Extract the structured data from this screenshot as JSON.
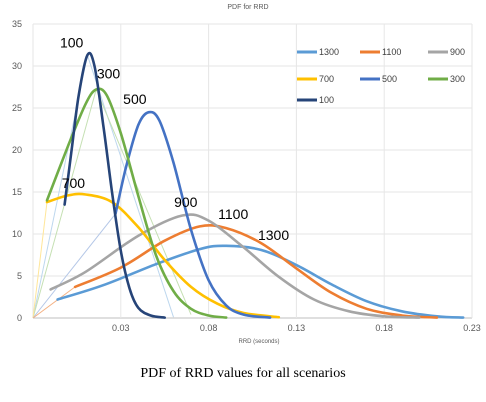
{
  "caption": "PDF of RRD values for all scenarios",
  "chart_data": {
    "type": "line",
    "title": "PDF for RRD",
    "xlabel": "RRD (seconds)",
    "ylabel": "",
    "xlim": [
      -0.02,
      0.23
    ],
    "ylim": [
      0,
      35
    ],
    "xticks": [
      0.03,
      0.08,
      0.13,
      0.18,
      0.23
    ],
    "xtick_labels": [
      "0.03",
      "0.08",
      "0.13",
      "0.18",
      "0.23"
    ],
    "yticks": [
      0,
      5,
      10,
      15,
      20,
      25,
      30,
      35
    ],
    "grid": true,
    "legend_position": "top-right",
    "series": [
      {
        "name": "1300",
        "color": "#5b9bd5",
        "label": "1300",
        "label_at": [
          0.117,
          9.3
        ],
        "points": [
          [
            -0.006,
            2.2
          ],
          [
            0.02,
            3.9
          ],
          [
            0.05,
            6.4
          ],
          [
            0.075,
            8.2
          ],
          [
            0.09,
            8.6
          ],
          [
            0.11,
            8.1
          ],
          [
            0.13,
            6.3
          ],
          [
            0.15,
            4.0
          ],
          [
            0.17,
            2.0
          ],
          [
            0.19,
            0.8
          ],
          [
            0.21,
            0.2
          ],
          [
            0.225,
            0.05
          ]
        ]
      },
      {
        "name": "1100",
        "color": "#ed7d31",
        "label": "1100",
        "label_at": [
          0.094,
          11.8
        ],
        "points": [
          [
            0.004,
            3.7
          ],
          [
            0.03,
            6.0
          ],
          [
            0.055,
            9.2
          ],
          [
            0.075,
            10.9
          ],
          [
            0.09,
            10.7
          ],
          [
            0.11,
            8.9
          ],
          [
            0.13,
            5.9
          ],
          [
            0.15,
            3.0
          ],
          [
            0.17,
            1.1
          ],
          [
            0.19,
            0.3
          ],
          [
            0.21,
            0.05
          ]
        ]
      },
      {
        "name": "900",
        "color": "#a5a5a5",
        "label": "900",
        "label_at": [
          0.067,
          13.2
        ],
        "points": [
          [
            -0.01,
            3.4
          ],
          [
            0.01,
            5.5
          ],
          [
            0.04,
            9.8
          ],
          [
            0.065,
            12.2
          ],
          [
            0.08,
            11.6
          ],
          [
            0.1,
            8.4
          ],
          [
            0.12,
            4.9
          ],
          [
            0.14,
            2.2
          ],
          [
            0.16,
            0.8
          ],
          [
            0.18,
            0.2
          ],
          [
            0.2,
            0.05
          ]
        ]
      },
      {
        "name": "700",
        "color": "#ffc000",
        "label": "700",
        "label_at": [
          0.003,
          15.5
        ],
        "points": [
          [
            -0.012,
            13.8
          ],
          [
            0.0,
            14.6
          ],
          [
            0.01,
            14.7
          ],
          [
            0.025,
            13.8
          ],
          [
            0.04,
            10.8
          ],
          [
            0.055,
            6.9
          ],
          [
            0.07,
            3.7
          ],
          [
            0.085,
            1.7
          ],
          [
            0.1,
            0.6
          ],
          [
            0.12,
            0.1
          ]
        ]
      },
      {
        "name": "500",
        "color": "#4472c4",
        "label": "500",
        "label_at": [
          0.038,
          25.5
        ],
        "points": [
          [
            0.027,
            12.4
          ],
          [
            0.033,
            18.0
          ],
          [
            0.04,
            23.0
          ],
          [
            0.046,
            24.5
          ],
          [
            0.052,
            23.5
          ],
          [
            0.06,
            18.5
          ],
          [
            0.07,
            10.5
          ],
          [
            0.08,
            4.5
          ],
          [
            0.09,
            1.5
          ],
          [
            0.1,
            0.4
          ],
          [
            0.115,
            0.05
          ]
        ]
      },
      {
        "name": "300",
        "color": "#70ad47",
        "label": "300",
        "label_at": [
          0.023,
          28.5
        ],
        "points": [
          [
            -0.012,
            14.0
          ],
          [
            0.0,
            20.5
          ],
          [
            0.01,
            25.5
          ],
          [
            0.016,
            27.2
          ],
          [
            0.022,
            26.5
          ],
          [
            0.03,
            22.0
          ],
          [
            0.04,
            14.5
          ],
          [
            0.05,
            7.5
          ],
          [
            0.06,
            3.2
          ],
          [
            0.07,
            1.1
          ],
          [
            0.08,
            0.3
          ],
          [
            0.09,
            0.05
          ]
        ]
      },
      {
        "name": "100",
        "color": "#264478",
        "label": "100",
        "label_at": [
          0.002,
          32.2
        ],
        "points": [
          [
            -0.002,
            13.5
          ],
          [
            0.002,
            20.0
          ],
          [
            0.006,
            26.5
          ],
          [
            0.011,
            31.3
          ],
          [
            0.015,
            30.0
          ],
          [
            0.02,
            23.0
          ],
          [
            0.025,
            15.0
          ],
          [
            0.03,
            8.0
          ],
          [
            0.035,
            3.5
          ],
          [
            0.04,
            1.2
          ],
          [
            0.047,
            0.3
          ],
          [
            0.055,
            0.05
          ]
        ]
      }
    ],
    "faint_lines": [
      {
        "color": "#bdd7ee",
        "points": [
          [
            -0.02,
            0.0
          ],
          [
            0.011,
            31.3
          ],
          [
            0.06,
            0.1
          ]
        ]
      },
      {
        "color": "#c5e0b3",
        "points": [
          [
            -0.02,
            0.0
          ],
          [
            0.016,
            27.2
          ],
          [
            0.07,
            0.4
          ]
        ]
      },
      {
        "color": "#ffe699",
        "points": [
          [
            -0.02,
            0.0
          ],
          [
            -0.012,
            13.8
          ]
        ]
      },
      {
        "color": "#b4c7e7",
        "points": [
          [
            -0.02,
            0.0
          ],
          [
            0.027,
            12.4
          ]
        ]
      },
      {
        "color": "#f4b183",
        "points": [
          [
            -0.02,
            0.0
          ],
          [
            0.004,
            3.7
          ]
        ]
      }
    ],
    "legend": {
      "rows": [
        [
          "1300",
          "1100",
          "900"
        ],
        [
          "700",
          "500",
          "300"
        ],
        [
          "100"
        ]
      ]
    }
  }
}
